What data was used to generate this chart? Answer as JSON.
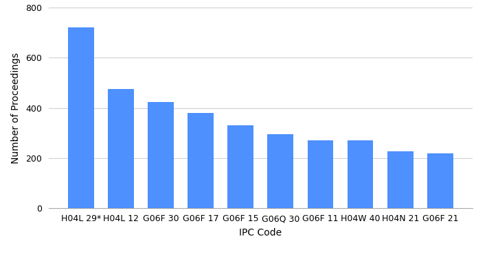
{
  "categories": [
    "H04L 29*",
    "H04L 12",
    "G06F 30",
    "G06F 17",
    "G06F 15",
    "G06Q 30",
    "G06F 11",
    "H04W 40",
    "H04N 21",
    "G06F 21"
  ],
  "values": [
    720,
    475,
    425,
    380,
    330,
    295,
    270,
    270,
    228,
    220
  ],
  "bar_color": "#4d90fe",
  "xlabel": "IPC Code",
  "ylabel": "Number of Proceedings",
  "ylim": [
    0,
    800
  ],
  "yticks": [
    0,
    200,
    400,
    600,
    800
  ],
  "background_color": "#ffffff",
  "grid_color": "#d0d0d0",
  "bar_width": 0.65,
  "xlabel_fontsize": 10,
  "ylabel_fontsize": 10,
  "tick_fontsize": 9
}
